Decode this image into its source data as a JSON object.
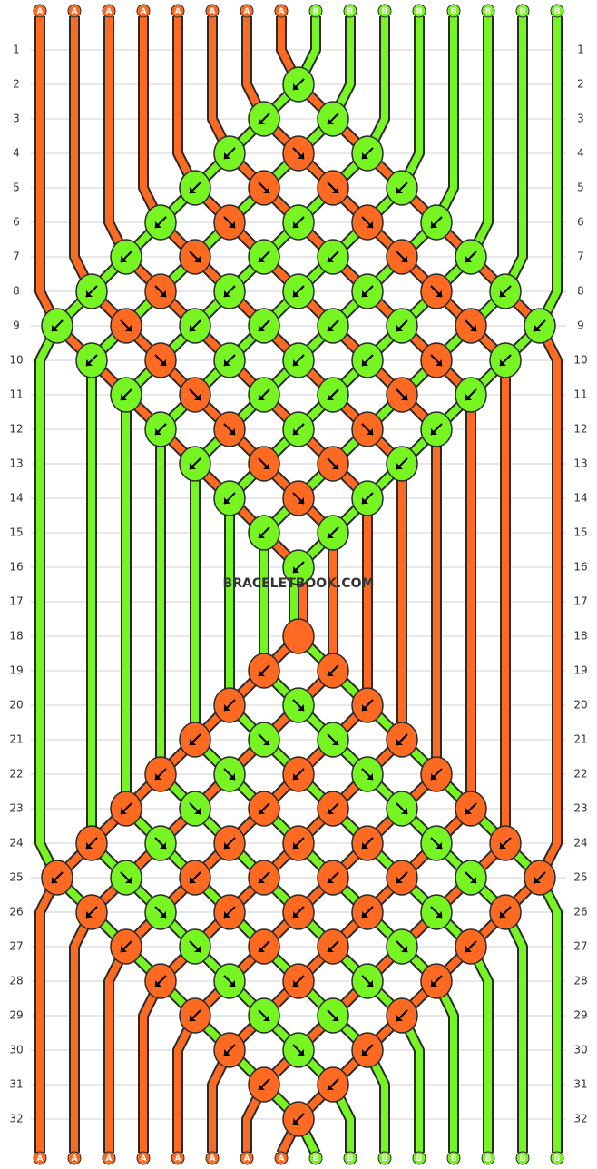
{
  "top_labels": [
    "A",
    "A",
    "A",
    "A",
    "A",
    "A",
    "A",
    "A",
    "B",
    "B",
    "B",
    "B",
    "B",
    "B",
    "B",
    "B"
  ],
  "bottom_labels": [
    "A",
    "A",
    "A",
    "A",
    "A",
    "A",
    "A",
    "A",
    "B",
    "B",
    "B",
    "B",
    "B",
    "B",
    "B",
    "B"
  ],
  "rows": [
    "1",
    "2",
    "3",
    "4",
    "5",
    "6",
    "7",
    "8",
    "9",
    "10",
    "11",
    "12",
    "13",
    "14",
    "15",
    "16",
    "17",
    "18",
    "19",
    "20",
    "21",
    "22",
    "23",
    "24",
    "25",
    "26",
    "27",
    "28",
    "29",
    "30",
    "31",
    "32"
  ],
  "watermark": "BRACELETBOOK.COM"
}
